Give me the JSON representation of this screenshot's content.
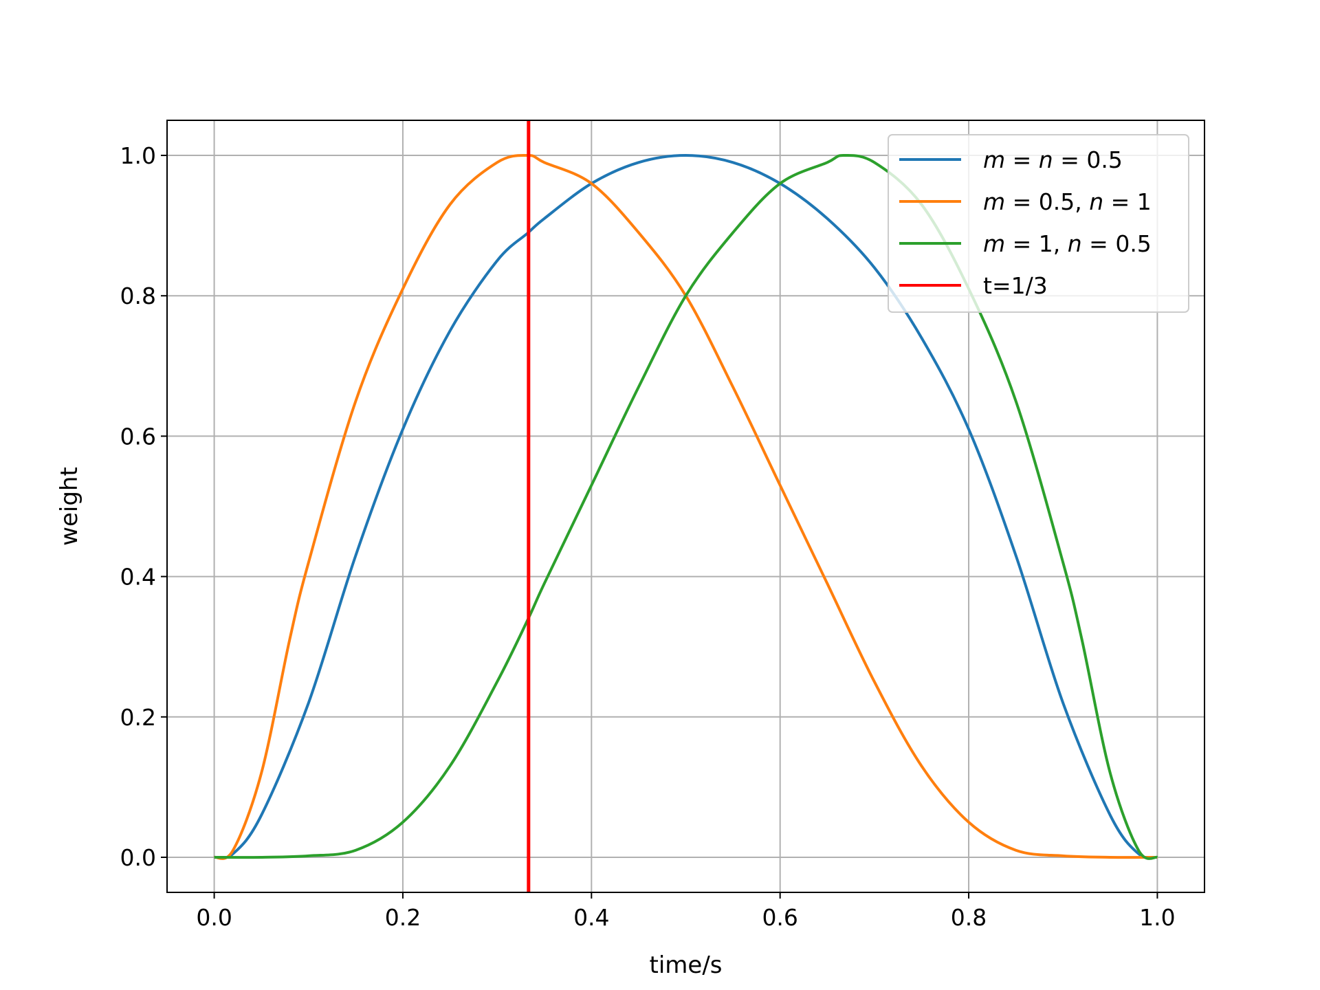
{
  "chart_data": {
    "type": "line",
    "title": "",
    "xlabel": "time/s",
    "ylabel": "weight",
    "xlim": [
      -0.05,
      1.05
    ],
    "ylim": [
      -0.05,
      1.05
    ],
    "xticks": [
      0.0,
      0.2,
      0.4,
      0.6,
      0.8,
      1.0
    ],
    "xtick_labels": [
      "0.0",
      "0.2",
      "0.4",
      "0.6",
      "0.8",
      "1.0"
    ],
    "yticks": [
      0.0,
      0.2,
      0.4,
      0.6,
      0.8,
      1.0
    ],
    "ytick_labels": [
      "0.0",
      "0.2",
      "0.4",
      "0.6",
      "0.8",
      "1.0"
    ],
    "grid": true,
    "legend_position": "top-right",
    "series": [
      {
        "name": "m = n = 0.5",
        "legend_parts": [
          [
            "m",
            true
          ],
          [
            " = ",
            false
          ],
          [
            "n",
            true
          ],
          [
            " = 0.5",
            false
          ]
        ],
        "color": "#1f77b4",
        "x": [
          0.0,
          0.02,
          0.05,
          0.1,
          0.15,
          0.2,
          0.25,
          0.3,
          0.333,
          0.35,
          0.4,
          0.45,
          0.5,
          0.55,
          0.6,
          0.65,
          0.7,
          0.75,
          0.8,
          0.85,
          0.9,
          0.95,
          0.98,
          1.0
        ],
        "y": [
          0.0,
          0.005,
          0.06,
          0.22,
          0.43,
          0.61,
          0.75,
          0.85,
          0.89,
          0.91,
          0.96,
          0.99,
          1.0,
          0.99,
          0.96,
          0.91,
          0.84,
          0.74,
          0.61,
          0.43,
          0.22,
          0.06,
          0.005,
          0.0
        ]
      },
      {
        "name": "m = 0.5, n = 1",
        "legend_parts": [
          [
            "m",
            true
          ],
          [
            " = 0.5, ",
            false
          ],
          [
            "n",
            true
          ],
          [
            " = 1",
            false
          ]
        ],
        "color": "#ff7f0e",
        "x": [
          0.0,
          0.02,
          0.05,
          0.08,
          0.1,
          0.15,
          0.2,
          0.25,
          0.3,
          0.333,
          0.35,
          0.4,
          0.45,
          0.5,
          0.55,
          0.6,
          0.65,
          0.7,
          0.75,
          0.8,
          0.85,
          0.9,
          0.95,
          1.0
        ],
        "y": [
          0.0,
          0.01,
          0.12,
          0.31,
          0.42,
          0.65,
          0.81,
          0.93,
          0.99,
          1.0,
          0.99,
          0.96,
          0.89,
          0.8,
          0.67,
          0.53,
          0.39,
          0.25,
          0.13,
          0.05,
          0.01,
          0.002,
          0.0,
          0.0
        ]
      },
      {
        "name": "m = 1, n = 0.5",
        "legend_parts": [
          [
            "m",
            true
          ],
          [
            " = 1, ",
            false
          ],
          [
            "n",
            true
          ],
          [
            " = 0.5",
            false
          ]
        ],
        "color": "#2ca02c",
        "x": [
          0.0,
          0.05,
          0.1,
          0.15,
          0.2,
          0.25,
          0.3,
          0.333,
          0.35,
          0.4,
          0.45,
          0.5,
          0.55,
          0.6,
          0.65,
          0.667,
          0.7,
          0.75,
          0.8,
          0.85,
          0.9,
          0.92,
          0.95,
          0.98,
          1.0
        ],
        "y": [
          0.0,
          0.0,
          0.002,
          0.01,
          0.05,
          0.13,
          0.25,
          0.34,
          0.39,
          0.53,
          0.67,
          0.8,
          0.89,
          0.96,
          0.99,
          1.0,
          0.99,
          0.93,
          0.81,
          0.65,
          0.42,
          0.31,
          0.12,
          0.01,
          0.0
        ]
      }
    ],
    "vertical_lines": [
      {
        "name": "t=1/3",
        "x": 0.3333,
        "color": "#ff0000"
      }
    ]
  }
}
